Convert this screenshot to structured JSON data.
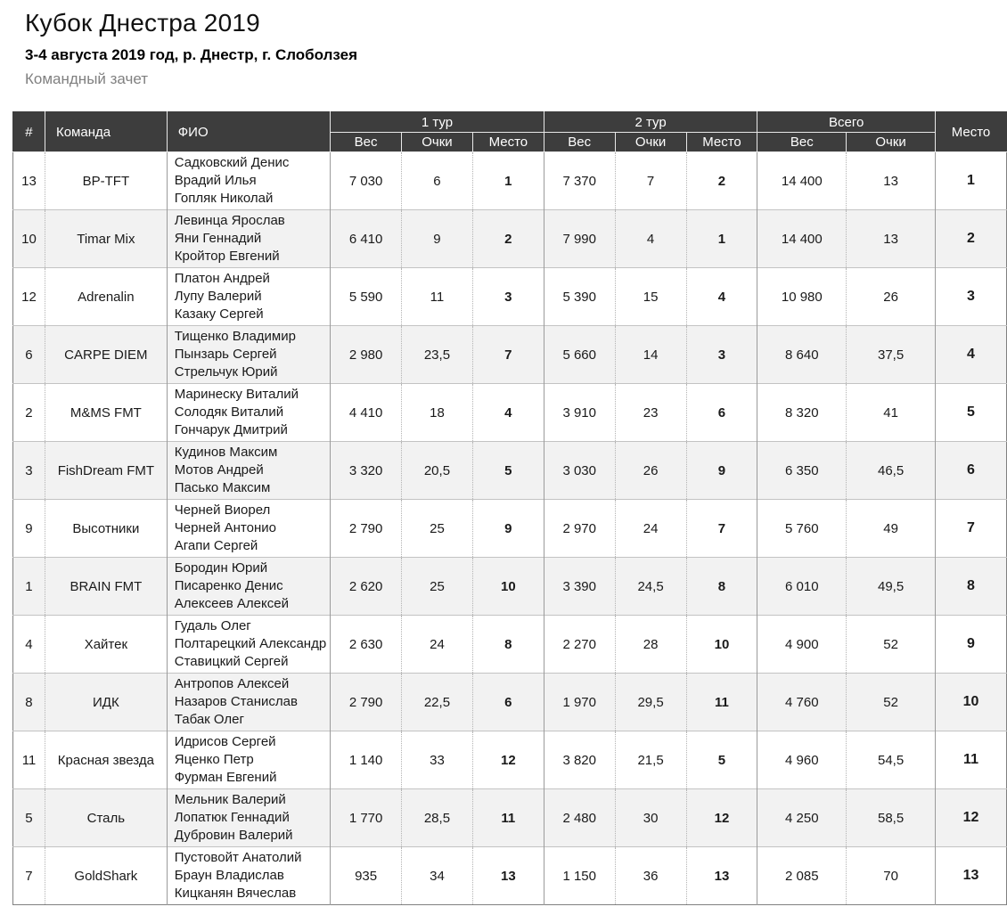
{
  "page": {
    "title": "Кубок Днестра 2019",
    "subtitle": "3-4 августа 2019 год, р. Днестр, г. Слоболзея",
    "category": "Командный зачет"
  },
  "colors": {
    "header_bg": "#3d3d3d",
    "header_text": "#ffffff",
    "row_alt_bg": "#f2f2f2",
    "muted_text": "#808080"
  },
  "table": {
    "columns": {
      "num": "#",
      "team": "Команда",
      "members": "ФИО",
      "round1": "1 тур",
      "round2": "2 тур",
      "total": "Всего",
      "place": "Место",
      "weight": "Вес",
      "points": "Очки",
      "round_place": "Место"
    },
    "rows": [
      {
        "num": "13",
        "team": "BP-TFT",
        "members": [
          "Садковский Денис",
          "Врадий Илья",
          "Гопляк Николай"
        ],
        "r1": {
          "weight": "7 030",
          "points": "6",
          "place": "1"
        },
        "r2": {
          "weight": "7 370",
          "points": "7",
          "place": "2"
        },
        "total": {
          "weight": "14 400",
          "points": "13"
        },
        "place": "1"
      },
      {
        "num": "10",
        "team": "Timar Mix",
        "members": [
          "Левинца Ярослав",
          "Яни Геннадий",
          "Кройтор Евгений"
        ],
        "r1": {
          "weight": "6 410",
          "points": "9",
          "place": "2"
        },
        "r2": {
          "weight": "7 990",
          "points": "4",
          "place": "1"
        },
        "total": {
          "weight": "14 400",
          "points": "13"
        },
        "place": "2"
      },
      {
        "num": "12",
        "team": "Adrenalin",
        "members": [
          "Платон Андрей",
          "Лупу Валерий",
          "Казаку Сергей"
        ],
        "r1": {
          "weight": "5 590",
          "points": "11",
          "place": "3"
        },
        "r2": {
          "weight": "5 390",
          "points": "15",
          "place": "4"
        },
        "total": {
          "weight": "10 980",
          "points": "26"
        },
        "place": "3"
      },
      {
        "num": "6",
        "team": "CARPE DIEM",
        "members": [
          "Тищенко Владимир",
          "Пынзарь Сергей",
          "Стрельчук Юрий"
        ],
        "r1": {
          "weight": "2 980",
          "points": "23,5",
          "place": "7"
        },
        "r2": {
          "weight": "5 660",
          "points": "14",
          "place": "3"
        },
        "total": {
          "weight": "8 640",
          "points": "37,5"
        },
        "place": "4"
      },
      {
        "num": "2",
        "team": "M&MS FMT",
        "members": [
          "Маринеску Виталий",
          "Солодяк Виталий",
          "Гончарук Дмитрий"
        ],
        "r1": {
          "weight": "4 410",
          "points": "18",
          "place": "4"
        },
        "r2": {
          "weight": "3 910",
          "points": "23",
          "place": "6"
        },
        "total": {
          "weight": "8 320",
          "points": "41"
        },
        "place": "5"
      },
      {
        "num": "3",
        "team": "FishDream FMT",
        "members": [
          "Кудинов Максим",
          "Мотов Андрей",
          "Пасько Максим"
        ],
        "r1": {
          "weight": "3 320",
          "points": "20,5",
          "place": "5"
        },
        "r2": {
          "weight": "3 030",
          "points": "26",
          "place": "9"
        },
        "total": {
          "weight": "6 350",
          "points": "46,5"
        },
        "place": "6"
      },
      {
        "num": "9",
        "team": "Высотники",
        "members": [
          "Черней Виорел",
          "Черней Антонио",
          "Агапи Сергей"
        ],
        "r1": {
          "weight": "2 790",
          "points": "25",
          "place": "9"
        },
        "r2": {
          "weight": "2 970",
          "points": "24",
          "place": "7"
        },
        "total": {
          "weight": "5 760",
          "points": "49"
        },
        "place": "7"
      },
      {
        "num": "1",
        "team": "BRAIN FMT",
        "members": [
          "Бородин Юрий",
          "Писаренко Денис",
          "Алексеев Алексей"
        ],
        "r1": {
          "weight": "2 620",
          "points": "25",
          "place": "10"
        },
        "r2": {
          "weight": "3 390",
          "points": "24,5",
          "place": "8"
        },
        "total": {
          "weight": "6 010",
          "points": "49,5"
        },
        "place": "8"
      },
      {
        "num": "4",
        "team": "Хайтек",
        "members": [
          "Гудаль Олег",
          "Полтарецкий Александр",
          "Ставицкий Сергей"
        ],
        "r1": {
          "weight": "2 630",
          "points": "24",
          "place": "8"
        },
        "r2": {
          "weight": "2 270",
          "points": "28",
          "place": "10"
        },
        "total": {
          "weight": "4 900",
          "points": "52"
        },
        "place": "9"
      },
      {
        "num": "8",
        "team": "ИДК",
        "members": [
          "Антропов Алексей",
          "Назаров Станислав",
          "Табак Олег"
        ],
        "r1": {
          "weight": "2 790",
          "points": "22,5",
          "place": "6"
        },
        "r2": {
          "weight": "1 970",
          "points": "29,5",
          "place": "11"
        },
        "total": {
          "weight": "4 760",
          "points": "52"
        },
        "place": "10"
      },
      {
        "num": "11",
        "team": "Красная звезда",
        "members": [
          "Идрисов Сергей",
          "Яценко Петр",
          "Фурман Евгений"
        ],
        "r1": {
          "weight": "1 140",
          "points": "33",
          "place": "12"
        },
        "r2": {
          "weight": "3 820",
          "points": "21,5",
          "place": "5"
        },
        "total": {
          "weight": "4 960",
          "points": "54,5"
        },
        "place": "11"
      },
      {
        "num": "5",
        "team": "Сталь",
        "members": [
          "Мельник Валерий",
          "Лопатюк Геннадий",
          "Дубровин Валерий"
        ],
        "r1": {
          "weight": "1 770",
          "points": "28,5",
          "place": "11"
        },
        "r2": {
          "weight": "2 480",
          "points": "30",
          "place": "12"
        },
        "total": {
          "weight": "4 250",
          "points": "58,5"
        },
        "place": "12"
      },
      {
        "num": "7",
        "team": "GoldShark",
        "members": [
          "Пустовойт Анатолий",
          "Браун Владислав",
          "Кицканян Вячеслав"
        ],
        "r1": {
          "weight": "935",
          "points": "34",
          "place": "13"
        },
        "r2": {
          "weight": "1 150",
          "points": "36",
          "place": "13"
        },
        "total": {
          "weight": "2 085",
          "points": "70"
        },
        "place": "13"
      }
    ]
  }
}
